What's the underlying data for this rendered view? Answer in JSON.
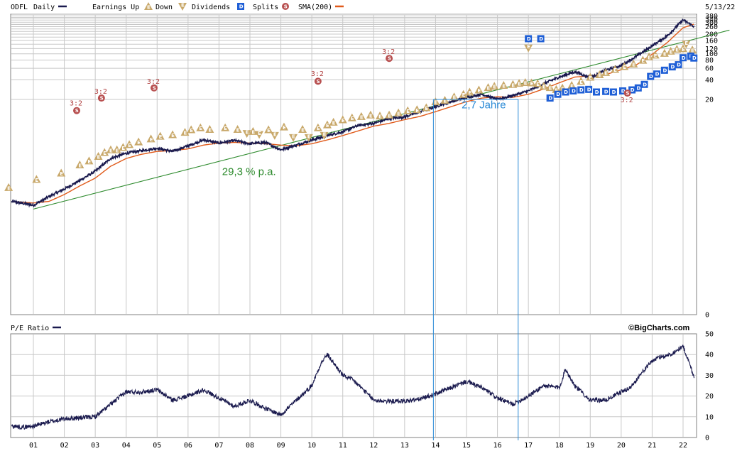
{
  "date_label": "5/13/22",
  "brand": "©BigCharts.com",
  "legend": {
    "symbol": "ODFL",
    "period": "Daily",
    "earnings_up": "Earnings Up",
    "down": "Down",
    "dividends": "Dividends",
    "splits": "Splits",
    "sma": "SMA(200)",
    "pe_ratio": "P/E Ratio"
  },
  "markers": {
    "earnings_letter": "E",
    "dividend_letter": "D",
    "split_letter": "S",
    "split_ratio": "3:2"
  },
  "colors": {
    "price": "#1a1a4e",
    "sma": "#e05a1a",
    "trend": "#2e8b2e",
    "annotation_box": "#2a8ad6",
    "earnings": "#c8a86a",
    "dividends": "#1f5fd6",
    "splits": "#b85050",
    "grid": "#c8c8c8"
  },
  "annotations": {
    "growth": "29,3 % p.a.",
    "period": "2,7 Jahre"
  },
  "chart_data": [
    {
      "type": "line",
      "title": "ODFL Daily",
      "scale": "log",
      "y_ticks": [
        "380",
        "340",
        "300",
        "260",
        "200",
        "160",
        "120",
        "100",
        "80",
        "60",
        "40",
        "20",
        "0"
      ],
      "y_tick_values": [
        380,
        340,
        300,
        260,
        200,
        160,
        120,
        100,
        80,
        60,
        40,
        20
      ],
      "x_ticks": [
        "01",
        "02",
        "03",
        "04",
        "05",
        "06",
        "07",
        "08",
        "09",
        "10",
        "11",
        "12",
        "13",
        "14",
        "15",
        "16",
        "17",
        "18",
        "19",
        "20",
        "21",
        "22"
      ],
      "series": [
        {
          "name": "ODFL Daily",
          "x": [
            2000.3,
            2001.0,
            2001.5,
            2002.0,
            2002.5,
            2003.0,
            2003.5,
            2004.0,
            2004.5,
            2005.0,
            2005.5,
            2006.0,
            2006.5,
            2007.0,
            2007.5,
            2008.0,
            2008.5,
            2009.0,
            2009.5,
            2010.0,
            2010.5,
            2011.0,
            2011.5,
            2012.0,
            2012.5,
            2013.0,
            2013.5,
            2014.0,
            2014.5,
            2015.0,
            2015.5,
            2016.0,
            2016.5,
            2017.0,
            2017.5,
            2018.0,
            2018.5,
            2019.0,
            2019.5,
            2020.0,
            2020.5,
            2021.0,
            2021.5,
            2022.0,
            2022.36
          ],
          "values": [
            0.55,
            0.48,
            0.65,
            0.85,
            1.15,
            1.6,
            2.5,
            3.0,
            3.3,
            3.6,
            3.2,
            3.9,
            4.8,
            4.3,
            4.7,
            4.2,
            4.4,
            3.4,
            4.0,
            4.8,
            5.6,
            6.4,
            8.0,
            8.6,
            10.2,
            10.8,
            13.0,
            15.5,
            18.5,
            21.5,
            24.0,
            20.0,
            23.0,
            27.0,
            35.0,
            44.0,
            53.0,
            43.0,
            56.0,
            66.0,
            92.0,
            132.0,
            190.0,
            330.0,
            260.0
          ]
        },
        {
          "name": "SMA(200)",
          "x": [
            2000.3,
            2001.0,
            2001.5,
            2002.0,
            2002.5,
            2003.0,
            2003.5,
            2004.0,
            2004.5,
            2005.0,
            2005.5,
            2006.0,
            2006.5,
            2007.0,
            2007.5,
            2008.0,
            2008.5,
            2009.0,
            2009.5,
            2010.0,
            2010.5,
            2011.0,
            2011.5,
            2012.0,
            2012.5,
            2013.0,
            2013.5,
            2014.0,
            2014.5,
            2015.0,
            2015.5,
            2016.0,
            2016.5,
            2017.0,
            2017.5,
            2018.0,
            2018.5,
            2019.0,
            2019.5,
            2020.0,
            2020.5,
            2021.0,
            2021.5,
            2022.0,
            2022.36
          ],
          "values": [
            0.55,
            0.52,
            0.55,
            0.7,
            0.95,
            1.25,
            1.9,
            2.5,
            2.9,
            3.2,
            3.3,
            3.5,
            4.0,
            4.3,
            4.4,
            4.3,
            4.2,
            4.0,
            3.9,
            4.2,
            4.8,
            5.6,
            6.6,
            7.8,
            8.6,
            9.8,
            11.0,
            13.0,
            15.5,
            18.5,
            21.0,
            22.0,
            21.5,
            24.0,
            29.0,
            36.0,
            44.0,
            46.0,
            48.0,
            57.0,
            68.0,
            98.0,
            150.0,
            250.0,
            285.0
          ]
        },
        {
          "name": "Trendline",
          "x": [
            2001.0,
            2023.5
          ],
          "values": [
            0.42,
            230
          ]
        }
      ],
      "earnings_up": [
        [
          2000.2,
          0.9
        ],
        [
          2001.1,
          1.2
        ],
        [
          2001.9,
          1.5
        ],
        [
          2002.5,
          2.0
        ],
        [
          2002.8,
          2.3
        ],
        [
          2003.1,
          2.7
        ],
        [
          2003.3,
          3.1
        ],
        [
          2003.5,
          3.4
        ],
        [
          2003.7,
          3.4
        ],
        [
          2003.9,
          3.7
        ],
        [
          2004.1,
          4.1
        ],
        [
          2004.4,
          4.5
        ],
        [
          2004.8,
          5.0
        ],
        [
          2005.1,
          5.5
        ],
        [
          2005.5,
          5.8
        ],
        [
          2005.9,
          6.3
        ],
        [
          2006.1,
          6.9
        ],
        [
          2006.4,
          7.4
        ],
        [
          2006.7,
          7.0
        ],
        [
          2007.2,
          7.4
        ],
        [
          2007.6,
          7.0
        ],
        [
          2008.1,
          6.5
        ],
        [
          2008.6,
          6.9
        ],
        [
          2009.1,
          7.6
        ],
        [
          2009.7,
          7.0
        ],
        [
          2010.2,
          7.4
        ],
        [
          2010.5,
          8.2
        ],
        [
          2010.7,
          9.0
        ],
        [
          2011.0,
          9.8
        ],
        [
          2011.3,
          10.5
        ],
        [
          2011.6,
          11.0
        ],
        [
          2011.9,
          11.6
        ],
        [
          2012.2,
          11.2
        ],
        [
          2012.5,
          11.6
        ],
        [
          2012.8,
          12.5
        ],
        [
          2013.1,
          13.5
        ],
        [
          2013.4,
          14.0
        ],
        [
          2013.7,
          15.0
        ],
        [
          2014.0,
          18.5
        ],
        [
          2014.3,
          19.5
        ],
        [
          2014.6,
          22.0
        ],
        [
          2014.9,
          24.0
        ],
        [
          2015.1,
          26.0
        ],
        [
          2015.4,
          28.0
        ],
        [
          2015.7,
          30.5
        ],
        [
          2015.9,
          32.0
        ],
        [
          2016.2,
          33.0
        ],
        [
          2016.5,
          34.0
        ],
        [
          2016.7,
          35.5
        ],
        [
          2016.9,
          36.5
        ],
        [
          2017.1,
          36.0
        ],
        [
          2017.3,
          35.0
        ],
        [
          2017.5,
          32.0
        ],
        [
          2017.7,
          30.5
        ],
        [
          2017.9,
          28.5
        ],
        [
          2018.1,
          30.0
        ],
        [
          2018.4,
          33.0
        ],
        [
          2018.7,
          38.0
        ],
        [
          2019.0,
          44.0
        ],
        [
          2019.3,
          48.0
        ],
        [
          2019.5,
          52.0
        ],
        [
          2019.8,
          58.0
        ],
        [
          2020.1,
          64.0
        ],
        [
          2020.4,
          70.0
        ],
        [
          2020.7,
          80.0
        ],
        [
          2020.9,
          90.0
        ],
        [
          2021.1,
          96.0
        ],
        [
          2021.4,
          102.0
        ],
        [
          2021.6,
          110.0
        ],
        [
          2021.8,
          118.0
        ],
        [
          2022.0,
          120.0
        ],
        [
          2022.3,
          115.0
        ]
      ],
      "earnings_down": [
        [
          2007.9,
          6.0
        ],
        [
          2008.3,
          5.8
        ],
        [
          2008.8,
          5.6
        ],
        [
          2009.4,
          5.2
        ],
        [
          2009.9,
          5.2
        ],
        [
          2010.4,
          5.6
        ],
        [
          2017.0,
          122.0
        ],
        [
          2022.1,
          140.0
        ]
      ],
      "dividends": [
        [
          2017.0,
          170.0
        ],
        [
          2017.4,
          170.0
        ],
        [
          2017.7,
          21.0
        ],
        [
          2017.95,
          24.0
        ],
        [
          2018.2,
          26.0
        ],
        [
          2018.45,
          27.0
        ],
        [
          2018.7,
          28.0
        ],
        [
          2018.95,
          28.5
        ],
        [
          2019.2,
          26.0
        ],
        [
          2019.5,
          26.5
        ],
        [
          2019.75,
          26.0
        ],
        [
          2020.05,
          27.0
        ],
        [
          2020.35,
          28.0
        ],
        [
          2020.55,
          30.0
        ],
        [
          2020.75,
          34.0
        ],
        [
          2020.95,
          45.0
        ],
        [
          2021.15,
          49.0
        ],
        [
          2021.4,
          56.0
        ],
        [
          2021.65,
          63.0
        ],
        [
          2021.85,
          68.0
        ],
        [
          2022.0,
          87.0
        ],
        [
          2022.25,
          92.0
        ],
        [
          2022.35,
          86.0
        ]
      ],
      "splits": [
        [
          2002.4,
          13.5
        ],
        [
          2003.2,
          21.0
        ],
        [
          2004.9,
          30.0
        ],
        [
          2010.2,
          38.0
        ],
        [
          2012.5,
          85.0
        ],
        [
          2020.2,
          25.0
        ]
      ],
      "split_labels": [
        [
          2002.4,
          17.5
        ],
        [
          2003.2,
          26.5
        ],
        [
          2004.9,
          37.5
        ],
        [
          2010.2,
          49.0
        ],
        [
          2012.5,
          107.0
        ],
        [
          2020.2,
          19.5
        ]
      ],
      "growth_label_at": [
        2007.1,
        1.4
      ],
      "period_box": {
        "x_start": 2013.93,
        "x_end": 2016.67,
        "top_value": 20.0,
        "label_at": [
          2015.3,
          16.5
        ]
      }
    },
    {
      "type": "line",
      "title": "P/E Ratio",
      "y_ticks": [
        "50",
        "40",
        "30",
        "20",
        "10",
        "0"
      ],
      "y_tick_values": [
        50,
        40,
        30,
        20,
        10,
        0
      ],
      "ylim": [
        0,
        50
      ],
      "x_ticks": [
        "01",
        "02",
        "03",
        "04",
        "05",
        "06",
        "07",
        "08",
        "09",
        "10",
        "11",
        "12",
        "13",
        "14",
        "15",
        "16",
        "17",
        "18",
        "19",
        "20",
        "21",
        "22"
      ],
      "series": [
        {
          "name": "P/E Ratio",
          "x": [
            2000.3,
            2000.7,
            2001.0,
            2001.5,
            2002.0,
            2002.5,
            2003.0,
            2003.5,
            2004.0,
            2004.5,
            2005.0,
            2005.5,
            2006.0,
            2006.5,
            2007.0,
            2007.5,
            2008.0,
            2008.5,
            2009.0,
            2009.5,
            2010.0,
            2010.3,
            2010.5,
            2011.0,
            2011.3,
            2011.6,
            2012.0,
            2012.5,
            2013.0,
            2013.5,
            2014.0,
            2014.5,
            2015.0,
            2015.5,
            2016.0,
            2016.5,
            2017.0,
            2017.5,
            2018.0,
            2018.2,
            2018.5,
            2019.0,
            2019.5,
            2020.0,
            2020.3,
            2020.6,
            2021.0,
            2021.3,
            2021.6,
            2022.0,
            2022.2,
            2022.36
          ],
          "values": [
            5.5,
            5.0,
            5.5,
            7.5,
            9.0,
            9.5,
            10.0,
            16.0,
            22.0,
            22.0,
            23.0,
            18.0,
            20.0,
            23.0,
            19.0,
            15.0,
            18.0,
            14.0,
            11.0,
            18.0,
            25.0,
            36.0,
            40.0,
            30.0,
            28.0,
            24.0,
            18.0,
            17.5,
            17.5,
            18.5,
            21.0,
            24.0,
            27.0,
            24.0,
            19.0,
            16.0,
            20.0,
            25.0,
            24.0,
            33.0,
            25.0,
            18.0,
            18.0,
            22.0,
            24.0,
            30.0,
            37.0,
            39.0,
            40.0,
            44.0,
            36.0,
            29.0
          ]
        }
      ],
      "period_lines": [
        2013.93,
        2016.67
      ]
    }
  ]
}
